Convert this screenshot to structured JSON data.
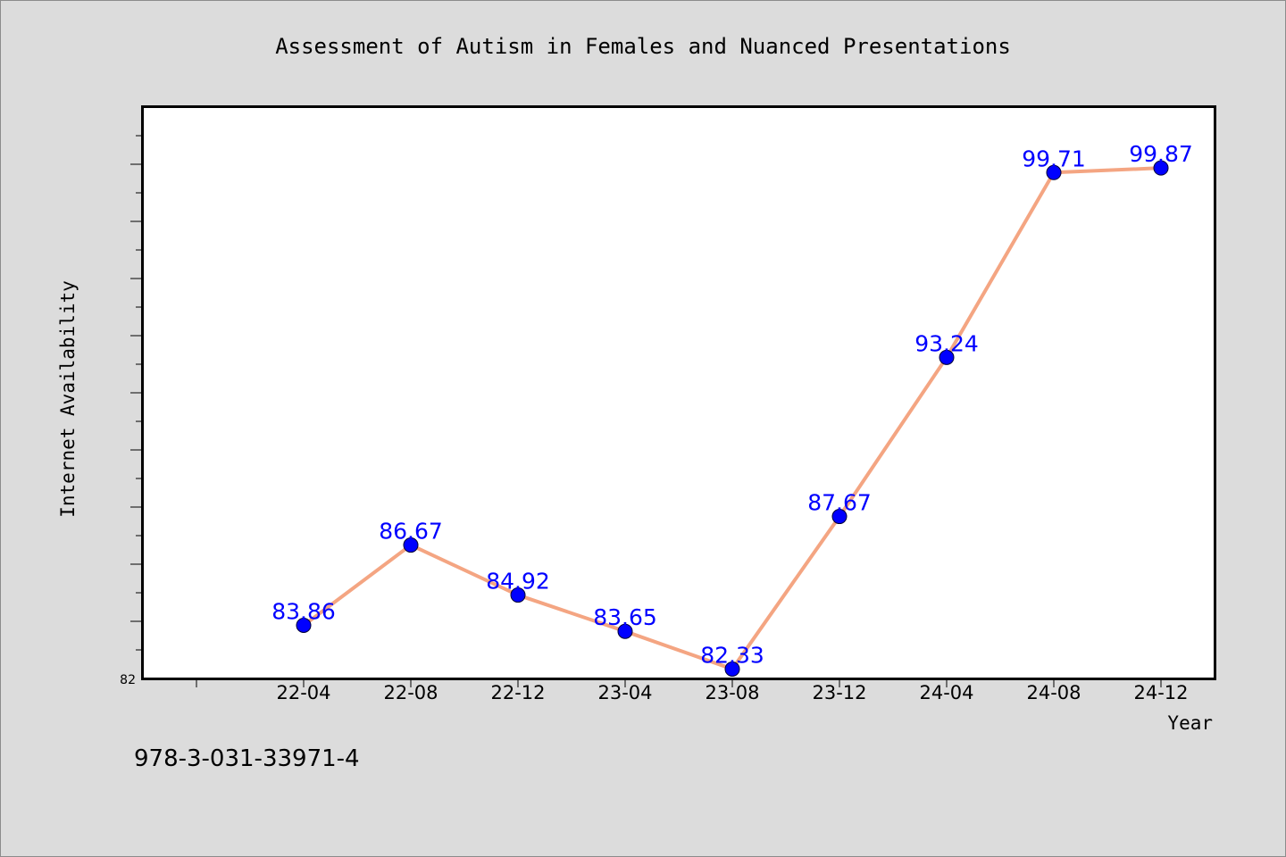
{
  "chart_data": {
    "type": "line",
    "title": "Assessment of Autism in Females and Nuanced Presentations",
    "xlabel": "Year",
    "ylabel": "Internet Availability",
    "categories": [
      "22-04",
      "22-08",
      "22-12",
      "23-04",
      "23-08",
      "23-12",
      "24-04",
      "24-08",
      "24-12"
    ],
    "series": [
      {
        "values": [
          83.86,
          86.67,
          84.92,
          83.65,
          82.33,
          87.67,
          93.24,
          99.71,
          99.87
        ]
      }
    ],
    "value_labels": [
      "83.86",
      "86.67",
      "84.92",
      "83.65",
      "82.33",
      "87.67",
      "93.24",
      "99.71",
      "99.87"
    ],
    "ylim": [
      82,
      102
    ],
    "y_tick_labels": [
      "82"
    ],
    "grid": false,
    "legend": "none"
  },
  "footer": {
    "isbn": "978-3-031-33971-4"
  },
  "colors": {
    "background": "#dcdcdc",
    "plot_background": "#ffffff",
    "line": "#f4a582",
    "marker": "#0000ff",
    "data_label": "#0000ff"
  }
}
